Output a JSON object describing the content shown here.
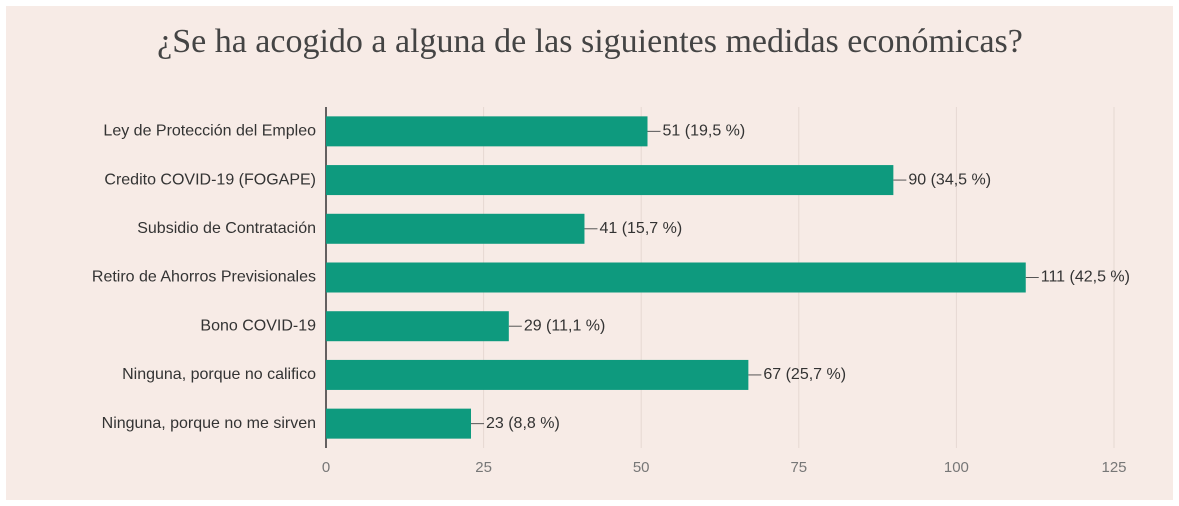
{
  "chart_data": {
    "type": "barh",
    "title": "¿Se ha acogido a alguna de las siguientes medidas económicas?",
    "categories": [
      "Ley de Protección del Empleo",
      "Credito COVID-19 (FOGAPE)",
      "Subsidio de Contratación",
      "Retiro de Ahorros Previsionales",
      "Bono COVID-19",
      "Ninguna, porque no califico",
      "Ninguna, porque no me sirven"
    ],
    "values": [
      51,
      90,
      41,
      111,
      29,
      67,
      23
    ],
    "value_labels": [
      "51 (19,5 %)",
      "90 (34,5 %)",
      "41 (15,7 %)",
      "111 (42,5 %)",
      "29 (11,1 %)",
      "67 (25,7 %)",
      "23 (8,8 %)"
    ],
    "color": "#0e9a7e",
    "xlim": [
      0,
      125
    ],
    "xticks": [
      0,
      25,
      50,
      75,
      100,
      125
    ],
    "grid": true
  }
}
